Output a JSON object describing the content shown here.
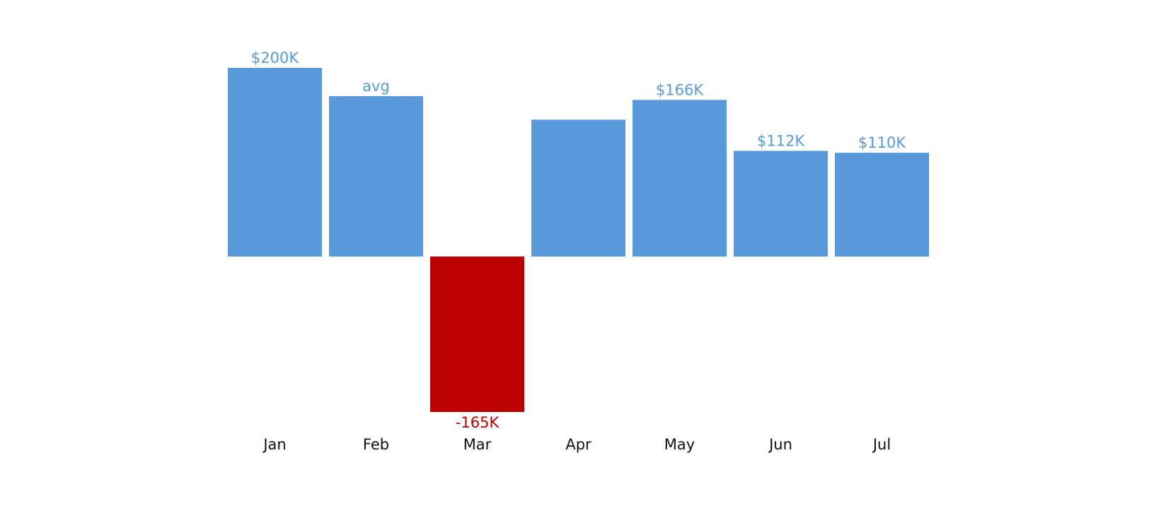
{
  "chart_data": {
    "type": "bar",
    "categories": [
      "Jan",
      "Feb",
      "Mar",
      "Apr",
      "May",
      "Jun",
      "Jul"
    ],
    "values": [
      200,
      170,
      -165,
      145,
      166,
      112,
      110
    ],
    "value_unit": "$K",
    "data_labels": [
      "$200K",
      "avg",
      "-165K",
      "",
      "$166K",
      "$112K",
      "$110K"
    ],
    "ylim": [
      -165,
      200
    ],
    "grid": false,
    "colors": {
      "positive": "#5899DA",
      "negative": "#BB0000",
      "positive_label": "#5899DA",
      "negative_label": "#BB0000",
      "axis_label": "#111111"
    }
  }
}
